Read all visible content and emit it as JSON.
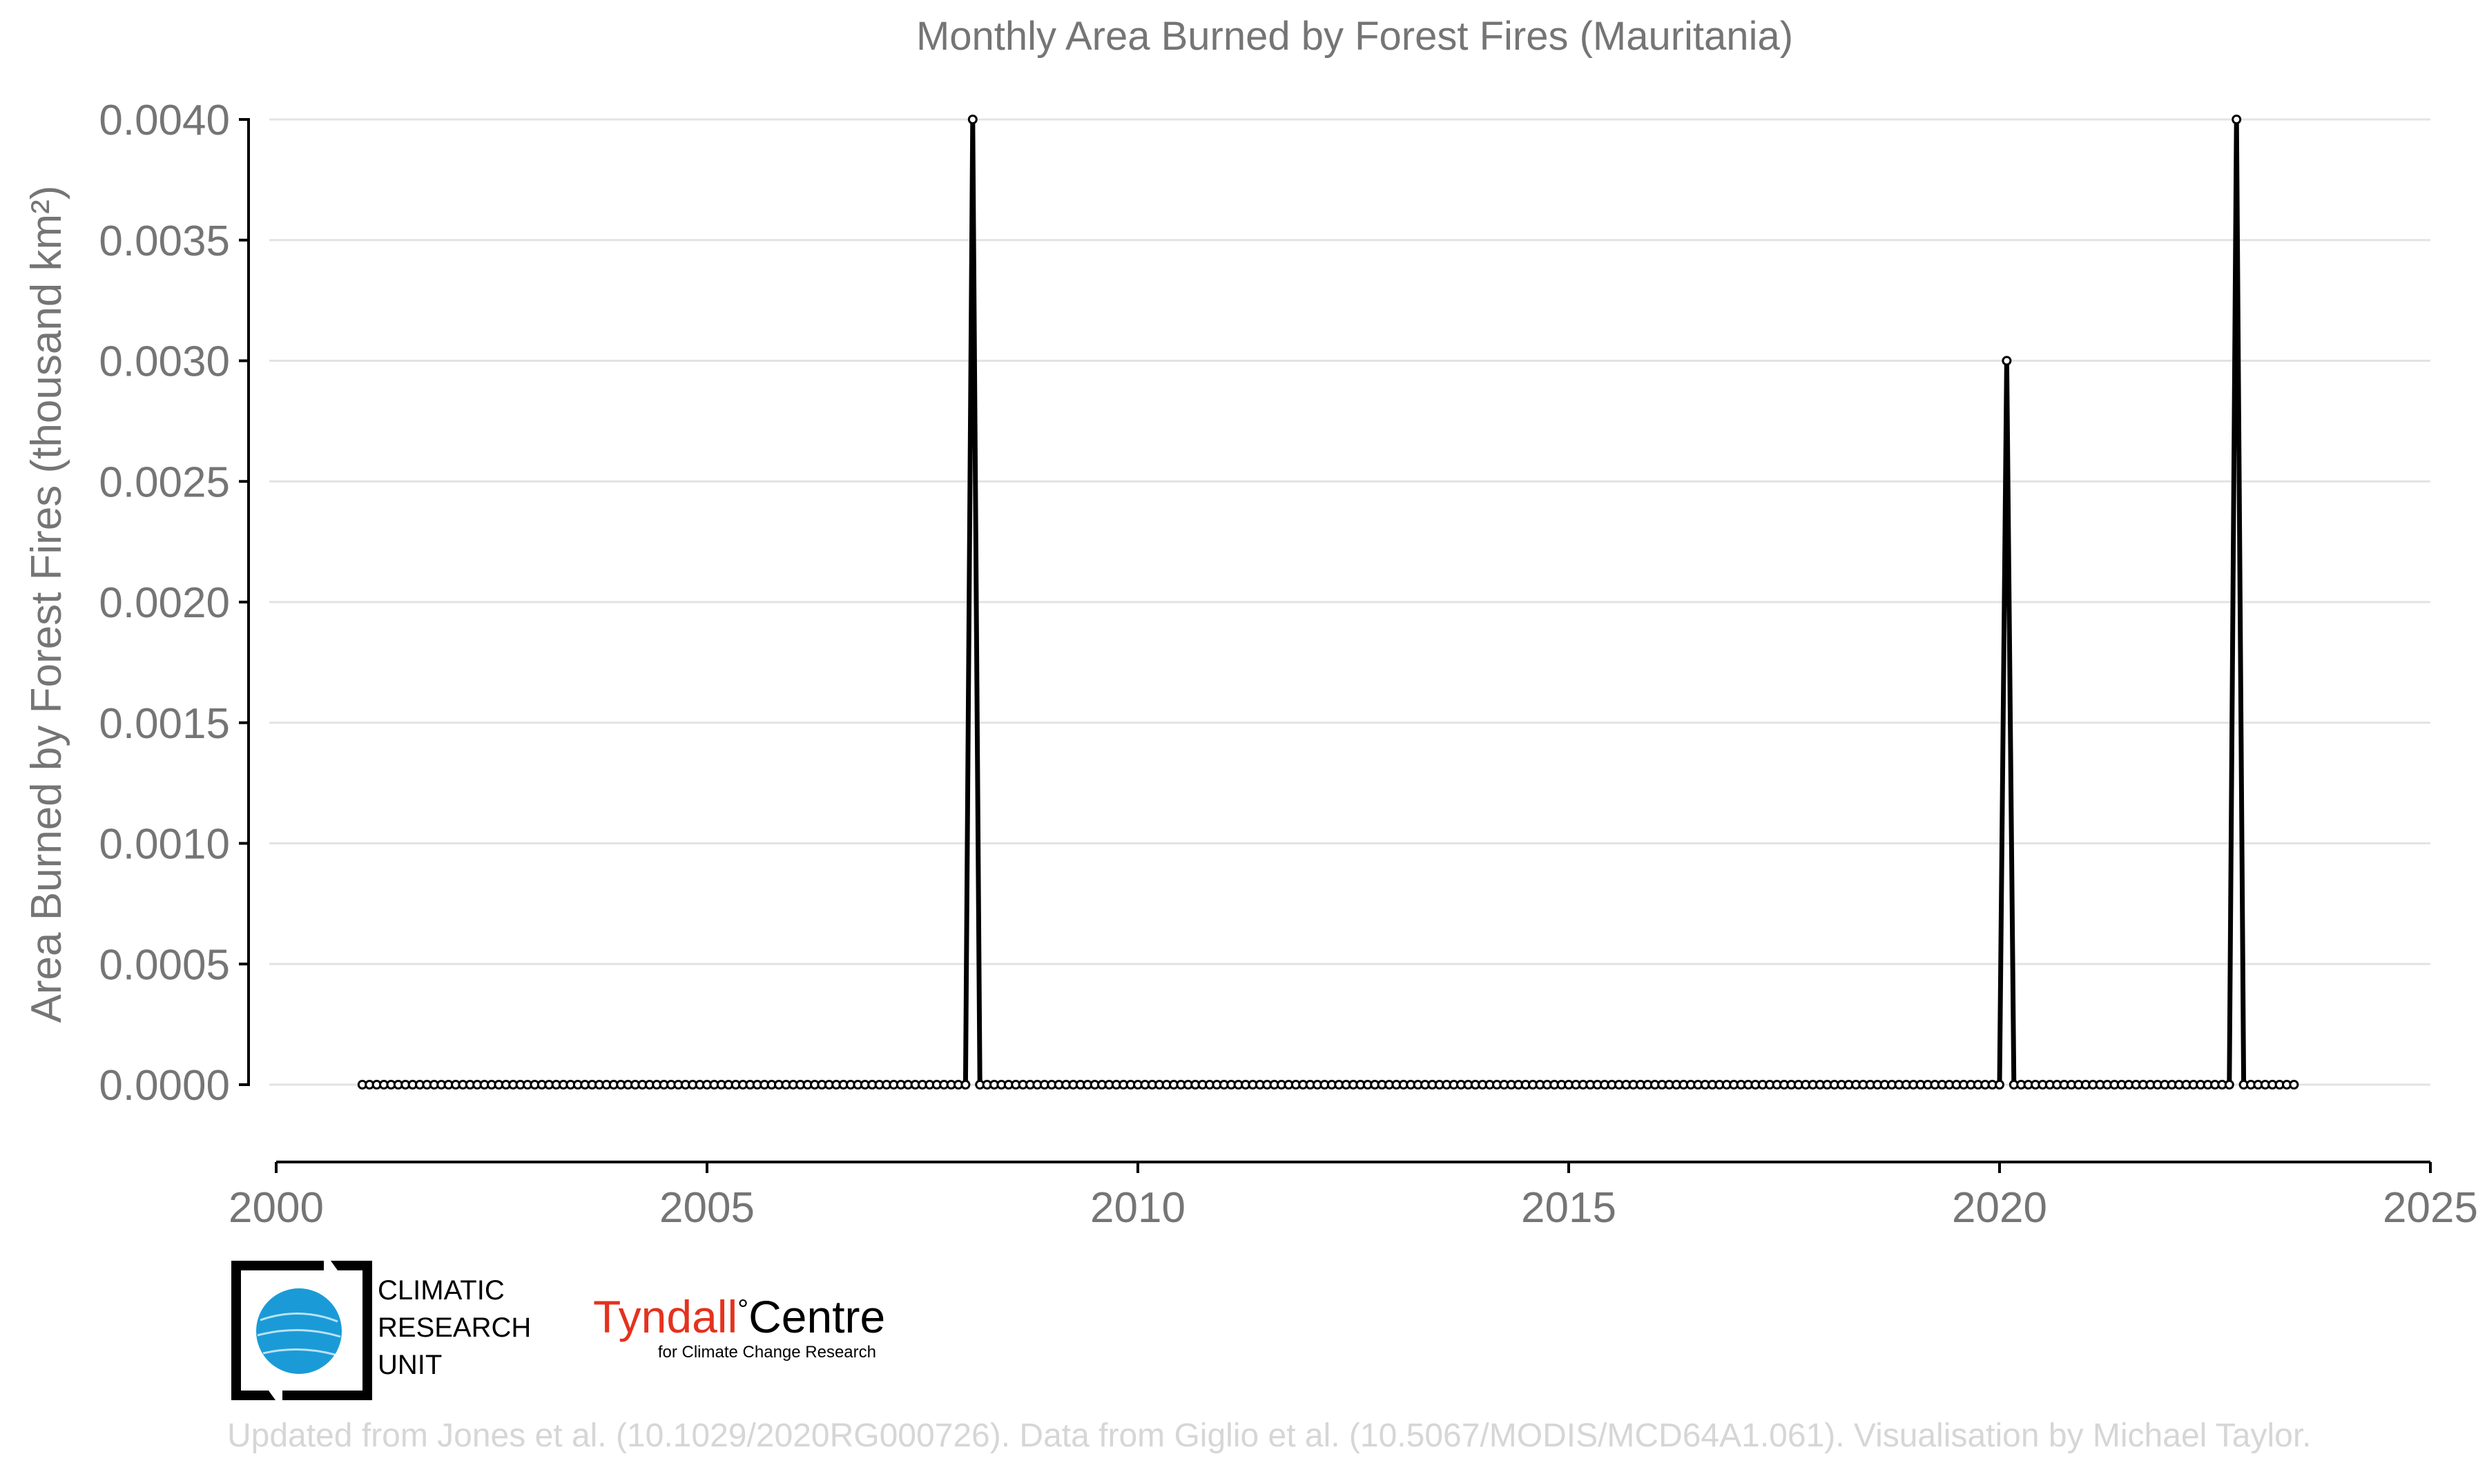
{
  "chart_data": {
    "type": "line",
    "title": "Monthly Area Burned by Forest Fires (Mauritania)",
    "xlabel": "",
    "ylabel": "Area Burned by Forest Fires (thousand km²)",
    "xlim": [
      2000,
      2025
    ],
    "ylim": [
      0.0,
      0.004
    ],
    "x_ticks": [
      "2000",
      "2005",
      "2010",
      "2015",
      "2020",
      "2025"
    ],
    "y_ticks": [
      "0.0000",
      "0.0005",
      "0.0010",
      "0.0015",
      "0.0020",
      "0.0025",
      "0.0030",
      "0.0035",
      "0.0040"
    ],
    "grid": "horizontal",
    "legend": "none",
    "series_color": "#000000",
    "series": [
      {
        "start": "2001-01",
        "end": "2023-06",
        "baseline_value": 0.0,
        "nonzero": [
          {
            "month": "2008-02",
            "value": 0.004
          },
          {
            "month": "2020-02",
            "value": 0.003
          },
          {
            "month": "2022-10",
            "value": 0.004
          }
        ]
      }
    ]
  },
  "logos": {
    "cru_lines": [
      "CLIMATIC",
      "RESEARCH",
      "UNIT"
    ],
    "cru_accent": "#1a9bd7",
    "tyndall_name": "Tyndall",
    "tyndall_degree": "°",
    "tyndall_centre": "Centre",
    "tyndall_sub": "for Climate Change Research",
    "tyndall_color": "#e4321e"
  },
  "credit": "Updated from Jones et al. (10.1029/2020RG000726). Data from Giglio et al. (10.5067/MODIS/MCD64A1.061). Visualisation by Michael Taylor."
}
